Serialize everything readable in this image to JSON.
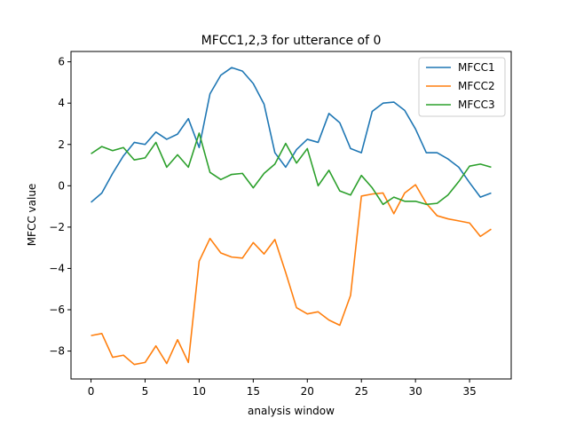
{
  "chart_data": {
    "type": "line",
    "title": "MFCC1,2,3 for utterance of 0",
    "xlabel": "analysis window",
    "ylabel": "MFCC value",
    "xlim": [
      -1.85,
      38.85
    ],
    "ylim": [
      -9.35,
      6.5
    ],
    "xticks": [
      0,
      5,
      10,
      15,
      20,
      25,
      30,
      35
    ],
    "yticks": [
      -8,
      -6,
      -4,
      -2,
      0,
      2,
      4,
      6
    ],
    "xtick_labels": [
      "0",
      "5",
      "10",
      "15",
      "20",
      "25",
      "30",
      "35"
    ],
    "ytick_labels": [
      "−8",
      "−6",
      "−4",
      "−2",
      "0",
      "2",
      "4",
      "6"
    ],
    "grid": false,
    "legend_position": "top-right",
    "x": [
      0,
      1,
      2,
      3,
      4,
      5,
      6,
      7,
      8,
      9,
      10,
      11,
      12,
      13,
      14,
      15,
      16,
      17,
      18,
      19,
      20,
      21,
      22,
      23,
      24,
      25,
      26,
      27,
      28,
      29,
      30,
      31,
      32,
      33,
      34,
      35,
      36,
      37
    ],
    "series": [
      {
        "name": "MFCC1",
        "color": "#1f77b4",
        "values": [
          -0.8,
          -0.35,
          0.6,
          1.45,
          2.1,
          2.0,
          2.6,
          2.25,
          2.5,
          3.25,
          1.85,
          4.45,
          5.35,
          5.72,
          5.55,
          4.95,
          3.95,
          1.6,
          0.9,
          1.75,
          2.25,
          2.1,
          3.5,
          3.05,
          1.8,
          1.6,
          3.6,
          4.0,
          4.05,
          3.65,
          2.75,
          1.6,
          1.6,
          1.3,
          0.9,
          0.15,
          -0.55,
          -0.35
        ]
      },
      {
        "name": "MFCC2",
        "color": "#ff7f0e",
        "values": [
          -7.25,
          -7.15,
          -8.3,
          -8.2,
          -8.65,
          -8.55,
          -7.75,
          -8.6,
          -7.45,
          -8.55,
          -3.65,
          -2.55,
          -3.25,
          -3.45,
          -3.5,
          -2.75,
          -3.3,
          -2.6,
          -4.2,
          -5.9,
          -6.2,
          -6.1,
          -6.5,
          -6.75,
          -5.3,
          -0.5,
          -0.4,
          -0.35,
          -1.35,
          -0.35,
          0.05,
          -0.85,
          -1.45,
          -1.6,
          -1.7,
          -1.8,
          -2.45,
          -2.1
        ]
      },
      {
        "name": "MFCC3",
        "color": "#2ca02c",
        "values": [
          1.55,
          1.9,
          1.7,
          1.85,
          1.25,
          1.35,
          2.1,
          0.9,
          1.5,
          0.9,
          2.55,
          0.65,
          0.3,
          0.55,
          0.6,
          -0.1,
          0.6,
          1.05,
          2.05,
          1.1,
          1.8,
          0.0,
          0.75,
          -0.25,
          -0.45,
          0.5,
          -0.1,
          -0.9,
          -0.55,
          -0.75,
          -0.75,
          -0.9,
          -0.85,
          -0.45,
          0.2,
          0.95,
          1.05,
          0.9
        ]
      }
    ]
  }
}
